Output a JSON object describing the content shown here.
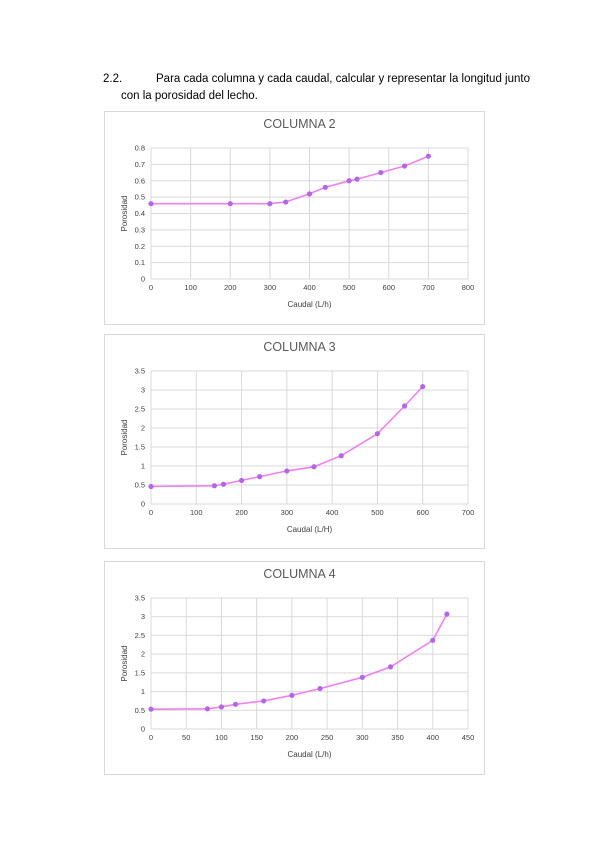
{
  "section": {
    "number": "2.2.",
    "line1": "Para cada columna y cada caudal, calcular y representar la longitud junto",
    "line2": "con la porosidad del lecho."
  },
  "colors": {
    "series": "#ee82ee",
    "marker": "#b366e6",
    "grid": "#d9d9d9"
  },
  "chart_data": [
    {
      "type": "line",
      "title": "COLUMNA 2",
      "xlabel": "Caudal (L/h)",
      "ylabel": "Porosidad",
      "xlim": [
        0,
        800
      ],
      "ylim": [
        0,
        0.8
      ],
      "xticks": [
        0,
        100,
        200,
        300,
        400,
        500,
        600,
        700,
        800
      ],
      "yticks": [
        0,
        0.1,
        0.2,
        0.3,
        0.4,
        0.5,
        0.6,
        0.7,
        0.8
      ],
      "grid": true,
      "series": [
        {
          "x": [
            0,
            200,
            300,
            340,
            400,
            440,
            500,
            520,
            580,
            640,
            700
          ],
          "y": [
            0.46,
            0.46,
            0.46,
            0.47,
            0.52,
            0.56,
            0.6,
            0.61,
            0.65,
            0.69,
            0.75
          ]
        }
      ]
    },
    {
      "type": "line",
      "title": "COLUMNA 3",
      "xlabel": "Caudal (L/H)",
      "ylabel": "Porosidad",
      "xlim": [
        0,
        700
      ],
      "ylim": [
        0,
        3.5
      ],
      "xticks": [
        0,
        100,
        200,
        300,
        400,
        500,
        600,
        700
      ],
      "yticks": [
        0,
        0.5,
        1,
        1.5,
        2,
        2.5,
        3,
        3.5
      ],
      "grid": true,
      "series": [
        {
          "x": [
            0,
            140,
            160,
            200,
            240,
            300,
            360,
            420,
            500,
            560,
            600
          ],
          "y": [
            0.46,
            0.48,
            0.52,
            0.62,
            0.72,
            0.87,
            0.98,
            1.27,
            1.85,
            2.58,
            3.09
          ]
        }
      ]
    },
    {
      "type": "line",
      "title": "COLUMNA 4",
      "xlabel": "Caudal (L/h)",
      "ylabel": "Porosidad",
      "xlim": [
        0,
        450
      ],
      "ylim": [
        0,
        3.5
      ],
      "xticks": [
        0,
        50,
        100,
        150,
        200,
        250,
        300,
        350,
        400,
        450
      ],
      "yticks": [
        0,
        0.5,
        1,
        1.5,
        2,
        2.5,
        3,
        3.5
      ],
      "grid": true,
      "series": [
        {
          "x": [
            0,
            80,
            100,
            120,
            160,
            200,
            240,
            300,
            340,
            400,
            420
          ],
          "y": [
            0.53,
            0.54,
            0.59,
            0.66,
            0.75,
            0.9,
            1.08,
            1.38,
            1.66,
            2.37,
            3.07
          ]
        }
      ]
    }
  ]
}
